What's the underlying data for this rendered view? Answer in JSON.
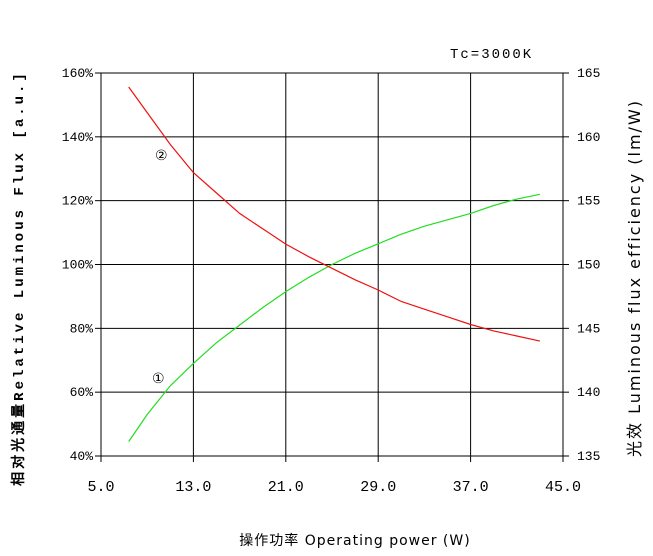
{
  "chart_data": {
    "type": "line",
    "annotation_top": "Tc=3000K",
    "xlabel": "操作功率 Operating power (W)",
    "ylabel_left": "相对光通量Relative Luminous Flux [a.u.]",
    "ylabel_right": "光效 Luminous flux efficiency (lm/W)",
    "xlim": [
      5,
      45
    ],
    "ylim_left": [
      40,
      160
    ],
    "ylim_right": [
      135,
      165
    ],
    "x_ticks": [
      "5.0",
      "13.0",
      "21.0",
      "29.0",
      "37.0",
      "45.0"
    ],
    "y_left_ticks": [
      "40%",
      "60%",
      "80%",
      "100%",
      "120%",
      "140%",
      "160%"
    ],
    "y_right_ticks": [
      "135",
      "140",
      "145",
      "150",
      "155",
      "160",
      "165"
    ],
    "grid": true,
    "series": [
      {
        "name": "①",
        "axis": "left",
        "color": "#22dd22",
        "x": [
          7.4,
          9.0,
          11.0,
          13.0,
          15.0,
          17.0,
          19.0,
          21.0,
          23.0,
          25.0,
          27.0,
          29.0,
          31.0,
          33.0,
          35.0,
          37.0,
          39.0,
          41.0,
          43.0
        ],
        "y": [
          44.5,
          53,
          62,
          69,
          75.5,
          81,
          86.5,
          91.5,
          96,
          100,
          103.5,
          106.5,
          109.5,
          112,
          114,
          116,
          118.5,
          120.5,
          122
        ]
      },
      {
        "name": "②",
        "axis": "right",
        "color": "#ee1111",
        "x": [
          7.4,
          9.0,
          11.0,
          13.0,
          15.0,
          17.0,
          19.0,
          21.0,
          23.0,
          25.0,
          27.0,
          29.0,
          31.0,
          33.0,
          35.0,
          37.0,
          39.0,
          41.0,
          43.0
        ],
        "y": [
          163.9,
          161.9,
          159.4,
          157.2,
          155.6,
          154.0,
          152.8,
          151.6,
          150.6,
          149.7,
          148.8,
          148.0,
          147.1,
          146.5,
          145.9,
          145.3,
          144.8,
          144.4,
          144.0
        ]
      }
    ],
    "series_labels": [
      "①",
      "②"
    ]
  }
}
